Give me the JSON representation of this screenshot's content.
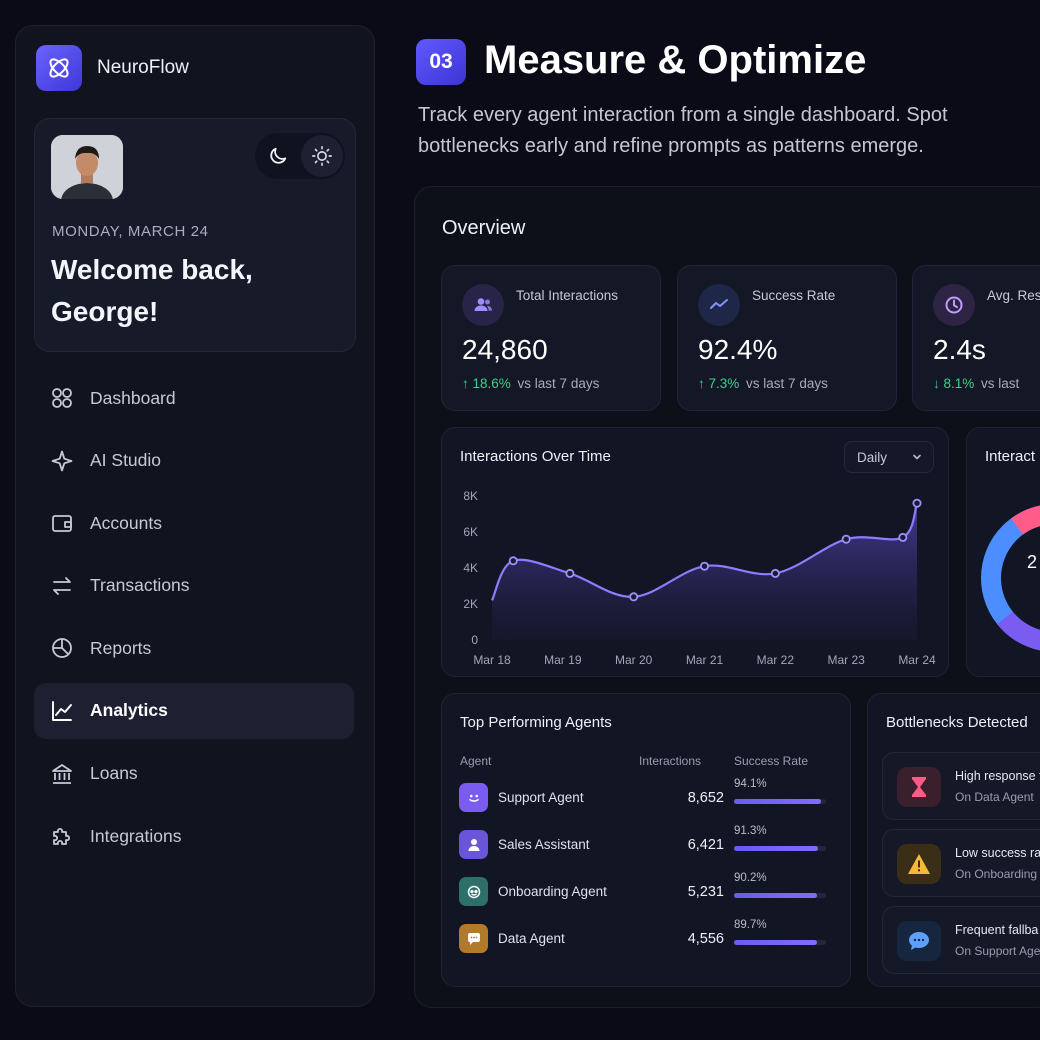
{
  "brand": {
    "name": "NeuroFlow"
  },
  "welcome": {
    "date": "MONDAY, MARCH 24",
    "greeting": "Welcome back, George!"
  },
  "nav": {
    "items": [
      {
        "label": "Dashboard",
        "icon": "grid-icon",
        "active": false
      },
      {
        "label": "AI Studio",
        "icon": "sparkle-icon",
        "active": false
      },
      {
        "label": "Accounts",
        "icon": "wallet-icon",
        "active": false
      },
      {
        "label": "Transactions",
        "icon": "arrows-exchange-icon",
        "active": false
      },
      {
        "label": "Reports",
        "icon": "pie-chart-icon",
        "active": false
      },
      {
        "label": "Analytics",
        "icon": "line-chart-icon",
        "active": true
      },
      {
        "label": "Loans",
        "icon": "bank-icon",
        "active": false
      },
      {
        "label": "Integrations",
        "icon": "puzzle-icon",
        "active": false
      }
    ]
  },
  "header": {
    "step": "03",
    "title": "Measure & Optimize",
    "description": "Track every agent interaction from a single dashboard. Spot bottlenecks early and refine prompts as patterns emerge."
  },
  "overview": {
    "title": "Overview",
    "stats": [
      {
        "label": "Total Interactions",
        "value": "24,860",
        "delta": "↑ 18.6%",
        "delta_text": "vs last 7 days",
        "icon": "users-icon",
        "color": "#8b7dff"
      },
      {
        "label": "Success Rate",
        "value": "92.4%",
        "delta": "↑ 7.3%",
        "delta_text": "vs last 7 days",
        "icon": "trend-icon",
        "color": "#6f8bff"
      },
      {
        "label": "Avg. Resp",
        "value": "2.4s",
        "delta": "↓ 8.1%",
        "delta_text": "vs last",
        "icon": "clock-icon",
        "color": "#b18cff"
      }
    ]
  },
  "interactions_chart": {
    "title": "Interactions Over Time",
    "period": "Daily"
  },
  "chart_data": {
    "type": "area",
    "x": [
      "Mar 18",
      "Mar 19",
      "Mar 20",
      "Mar 21",
      "Mar 22",
      "Mar 23",
      "Mar 24"
    ],
    "points": [
      {
        "x": "Mar 18",
        "y": 2200
      },
      {
        "x": "Mar 18.3",
        "y": 4400
      },
      {
        "x": "Mar 19.1",
        "y": 3700
      },
      {
        "x": "Mar 20",
        "y": 2400
      },
      {
        "x": "Mar 21",
        "y": 4100
      },
      {
        "x": "Mar 22",
        "y": 3700
      },
      {
        "x": "Mar 23",
        "y": 5600
      },
      {
        "x": "Mar 23.8",
        "y": 5700
      },
      {
        "x": "Mar 24",
        "y": 7600
      }
    ],
    "yticks": [
      "0",
      "2K",
      "4K",
      "6K",
      "8K"
    ],
    "ylim": [
      0,
      8000
    ],
    "grid": false
  },
  "donut": {
    "title": "Interact"
  },
  "agents": {
    "title": "Top Performing Agents",
    "columns": [
      "Agent",
      "Interactions",
      "Success Rate"
    ],
    "rows": [
      {
        "name": "Support Agent",
        "count": "8,652",
        "rate": "94.1%",
        "rate_value": 0.941,
        "icon": "smile-icon",
        "color": "#7b5cf0"
      },
      {
        "name": "Sales Assistant",
        "count": "6,421",
        "rate": "91.3%",
        "rate_value": 0.913,
        "icon": "person-icon",
        "color": "#6a55d8"
      },
      {
        "name": "Onboarding Agent",
        "count": "5,231",
        "rate": "90.2%",
        "rate_value": 0.902,
        "icon": "bot-icon",
        "color": "#2f6f6a"
      },
      {
        "name": "Data Agent",
        "count": "4,556",
        "rate": "89.7%",
        "rate_value": 0.897,
        "icon": "chat-icon",
        "color": "#b07a2a"
      }
    ]
  },
  "bottlenecks": {
    "title": "Bottlenecks Detected",
    "items": [
      {
        "title": "High response t",
        "sub": "On Data Agent",
        "icon": "hourglass-icon",
        "color": "#3a1f2c",
        "accent": "#ff5c8a"
      },
      {
        "title": "Low success ra",
        "sub": "On Onboarding",
        "icon": "warning-icon",
        "color": "#3a2e16",
        "accent": "#f6b93b"
      },
      {
        "title": "Frequent fallba",
        "sub": "On Support Age",
        "icon": "chat-bubble-icon",
        "color": "#16263f",
        "accent": "#5ea0ff"
      }
    ]
  }
}
